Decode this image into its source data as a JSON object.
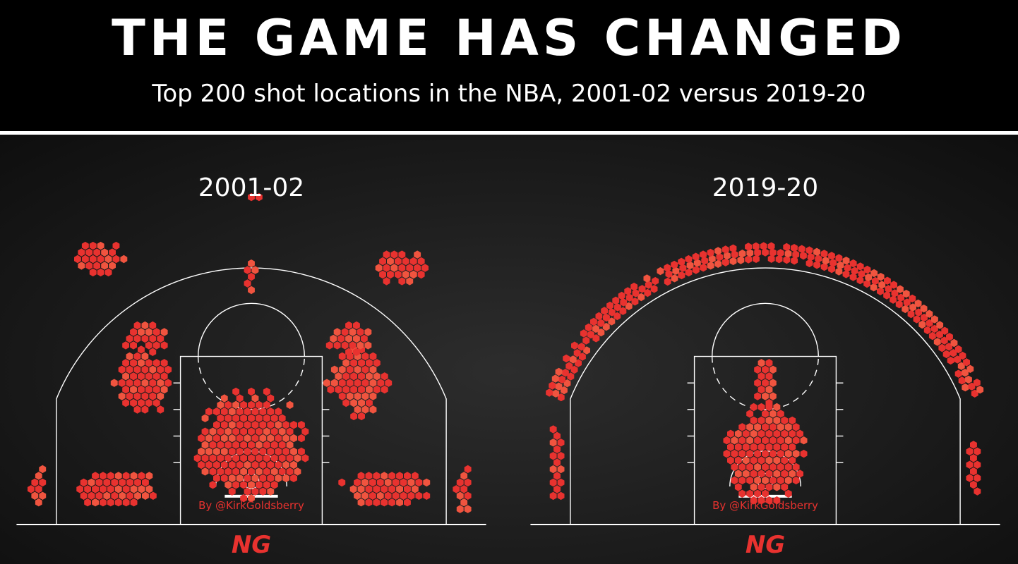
{
  "header": {
    "title": "THE GAME HAS CHANGED",
    "subtitle": "Top 200 shot locations in the NBA, 2001-02 versus 2019-20"
  },
  "colors": {
    "hex_fill": "#e8322f",
    "hex_fill_light": "#f0543f",
    "court_lines": "#ffffff",
    "background": "#1c1c1c"
  },
  "chart_data": [
    {
      "type": "scatter",
      "title": "2001-02",
      "credit": "By @KirkGoldsberry",
      "logo": "NG",
      "units": "feet (x from basket, y from baseline)",
      "xlim": [
        -25,
        25
      ],
      "ylim": [
        0,
        47
      ],
      "clusters": [
        {
          "zone": "restricted-area-and-paint",
          "cx": 0,
          "cy": 9,
          "rx": 6.5,
          "ry": 6.5,
          "rows": 16
        },
        {
          "zone": "left-baseline-midrange",
          "cx": -15,
          "cy": 4,
          "rx": 5.5,
          "ry": 2.2,
          "rows": 3
        },
        {
          "zone": "right-baseline-midrange",
          "cx": 15,
          "cy": 4,
          "rx": 5.5,
          "ry": 2.2,
          "rows": 3
        },
        {
          "zone": "left-wing-midrange",
          "cx": -12,
          "cy": 16,
          "rx": 3.5,
          "ry": 4,
          "rows": 6
        },
        {
          "zone": "right-wing-midrange",
          "cx": 12,
          "cy": 16,
          "rx": 3.5,
          "ry": 4,
          "rows": 6
        },
        {
          "zone": "left-elbow-extended",
          "cx": -12,
          "cy": 21,
          "rx": 2.5,
          "ry": 2,
          "rows": 3
        },
        {
          "zone": "right-elbow-extended",
          "cx": 11,
          "cy": 21,
          "rx": 2.5,
          "ry": 2,
          "rows": 3
        },
        {
          "zone": "left-corner-three",
          "cx": -24,
          "cy": 4,
          "rx": 0.9,
          "ry": 3,
          "rows": 5
        },
        {
          "zone": "right-corner-three",
          "cx": 24,
          "cy": 4,
          "rx": 0.9,
          "ry": 3,
          "rows": 5
        },
        {
          "zone": "left-arc-three",
          "cx": -17,
          "cy": 30,
          "rx": 3,
          "ry": 2,
          "rows": 4
        },
        {
          "zone": "right-arc-three",
          "cx": 17,
          "cy": 29,
          "rx": 3,
          "ry": 2,
          "rows": 4
        },
        {
          "zone": "top-of-key-three",
          "cx": 0,
          "cy": 37,
          "rx": 1,
          "ry": 0.8,
          "rows": 2
        },
        {
          "zone": "free-throw-line",
          "cx": 0,
          "cy": 28,
          "rx": 0.6,
          "ry": 2,
          "rows": 3
        }
      ]
    },
    {
      "type": "scatter",
      "title": "2019-20",
      "credit": "By @KirkGoldsberry",
      "logo": "NG",
      "units": "feet (x from basket, y from baseline)",
      "xlim": [
        -25,
        25
      ],
      "ylim": [
        0,
        47
      ],
      "clusters": [
        {
          "zone": "restricted-area-and-paint",
          "cx": 0,
          "cy": 8,
          "rx": 4.5,
          "ry": 6,
          "rows": 14
        },
        {
          "zone": "paint-top",
          "cx": 0,
          "cy": 16,
          "rx": 1.2,
          "ry": 2.5,
          "rows": 5
        },
        {
          "zone": "left-corner-three",
          "cx": -23.5,
          "cy": 7,
          "rx": 0.8,
          "ry": 4.5,
          "rows": 8
        },
        {
          "zone": "right-corner-three",
          "cx": 23.5,
          "cy": 6,
          "rx": 0.8,
          "ry": 3.5,
          "rows": 7
        },
        {
          "zone": "above-the-break-three-arc",
          "cx": 0,
          "cy": 0,
          "r": 25.5,
          "arc_deg": [
            22,
            158
          ],
          "band": 1.6
        }
      ]
    }
  ]
}
